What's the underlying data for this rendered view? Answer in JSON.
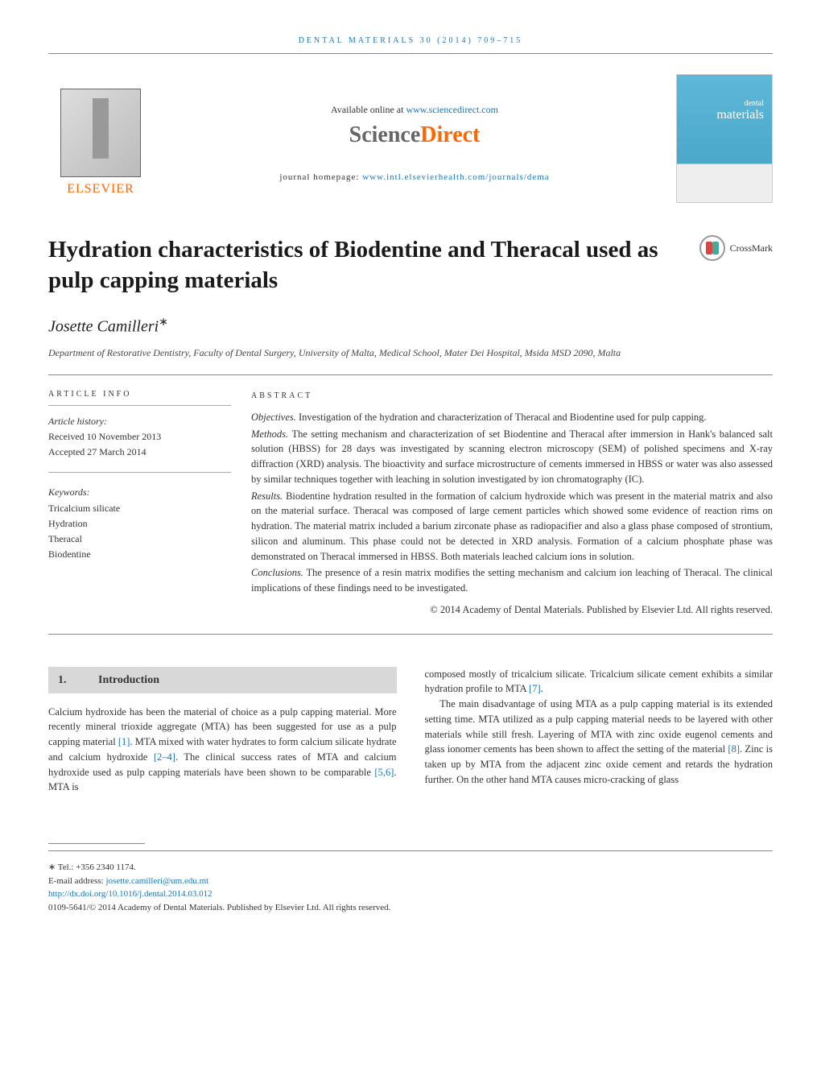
{
  "running_header": "dental materials 30 (2014) 709–715",
  "header": {
    "available_online": "Available online at",
    "sciencedirect_url": "www.sciencedirect.com",
    "sd_science": "Science",
    "sd_direct": "Direct",
    "journal_homepage_label": "journal homepage:",
    "journal_homepage_url": "www.intl.elsevierhealth.com/journals/dema",
    "elsevier": "ELSEVIER",
    "cover_dental": "dental",
    "cover_materials": "materials"
  },
  "crossmark_label": "CrossMark",
  "title": "Hydration characteristics of Biodentine and Theracal used as pulp capping materials",
  "author": "Josette Camilleri",
  "author_ast": "∗",
  "affiliation": "Department of Restorative Dentistry, Faculty of Dental Surgery, University of Malta, Medical School, Mater Dei Hospital, Msida MSD 2090, Malta",
  "article_info": {
    "heading": "ARTICLE INFO",
    "history_label": "Article history:",
    "received": "Received 10 November 2013",
    "accepted": "Accepted 27 March 2014",
    "keywords_label": "Keywords:",
    "keywords": [
      "Tricalcium silicate",
      "Hydration",
      "Theracal",
      "Biodentine"
    ]
  },
  "abstract": {
    "heading": "ABSTRACT",
    "objectives_label": "Objectives.",
    "objectives": "Investigation of the hydration and characterization of Theracal and Biodentine used for pulp capping.",
    "methods_label": "Methods.",
    "methods": "The setting mechanism and characterization of set Biodentine and Theracal after immersion in Hank's balanced salt solution (HBSS) for 28 days was investigated by scanning electron microscopy (SEM) of polished specimens and X-ray diffraction (XRD) analysis. The bioactivity and surface microstructure of cements immersed in HBSS or water was also assessed by similar techniques together with leaching in solution investigated by ion chromatography (IC).",
    "results_label": "Results.",
    "results": "Biodentine hydration resulted in the formation of calcium hydroxide which was present in the material matrix and also on the material surface. Theracal was composed of large cement particles which showed some evidence of reaction rims on hydration. The material matrix included a barium zirconate phase as radiopacifier and also a glass phase composed of strontium, silicon and aluminum. This phase could not be detected in XRD analysis. Formation of a calcium phosphate phase was demonstrated on Theracal immersed in HBSS. Both materials leached calcium ions in solution.",
    "conclusions_label": "Conclusions.",
    "conclusions": "The presence of a resin matrix modifies the setting mechanism and calcium ion leaching of Theracal. The clinical implications of these findings need to be investigated.",
    "copyright": "© 2014 Academy of Dental Materials. Published by Elsevier Ltd. All rights reserved."
  },
  "section": {
    "num": "1.",
    "title": "Introduction"
  },
  "body": {
    "col1_p1a": "Calcium hydroxide has been the material of choice as a pulp capping material. More recently mineral trioxide aggregate (MTA) has been suggested for use as a pulp capping material ",
    "col1_ref1": "[1]",
    "col1_p1b": ". MTA mixed with water hydrates to form calcium silicate hydrate and calcium hydroxide ",
    "col1_ref2": "[2–4]",
    "col1_p1c": ". The clinical success rates of MTA and calcium hydroxide used as pulp capping materials have been shown to be comparable ",
    "col1_ref3": "[5,6]",
    "col1_p1d": ". MTA is",
    "col2_p1a": "composed mostly of tricalcium silicate. Tricalcium silicate cement exhibits a similar hydration profile to MTA ",
    "col2_ref1": "[7]",
    "col2_p1b": ".",
    "col2_p2a": "The main disadvantage of using MTA as a pulp capping material is its extended setting time. MTA utilized as a pulp capping material needs to be layered with other materials while still fresh. Layering of MTA with zinc oxide eugenol cements and glass ionomer cements has been shown to affect the setting of the material ",
    "col2_ref2": "[8]",
    "col2_p2b": ". Zinc is taken up by MTA from the adjacent zinc oxide cement and retards the hydration further. On the other hand MTA causes micro-cracking of glass"
  },
  "footer": {
    "tel": "∗ Tel.: +356 2340 1174.",
    "email_label": "E-mail address:",
    "email": "josette.camilleri@um.edu.mt",
    "doi": "http://dx.doi.org/10.1016/j.dental.2014.03.012",
    "copyright": "0109-5641/© 2014 Academy of Dental Materials. Published by Elsevier Ltd. All rights reserved."
  },
  "colors": {
    "link": "#1a75bb",
    "orange": "#ff6600",
    "section_bg": "#d8d8d8"
  }
}
